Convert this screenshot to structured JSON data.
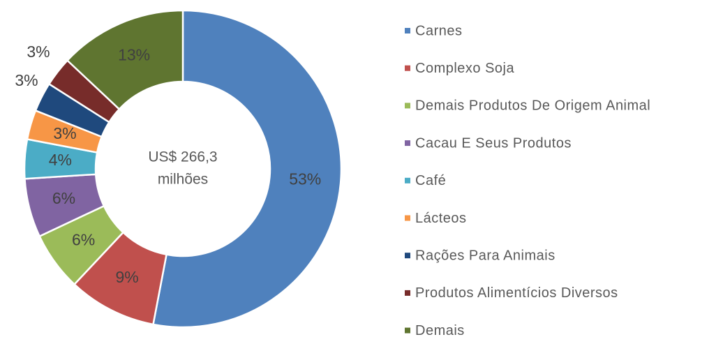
{
  "chart_data": {
    "type": "donut",
    "center_text": [
      "US$ 266,3",
      "milhões"
    ],
    "categories": [
      "Carnes",
      "Complexo Soja",
      "Demais Produtos De Origem Animal",
      "Cacau E Seus Produtos",
      "Café",
      "Lácteos",
      "Rações Para Animais",
      "Produtos Alimentícios Diversos",
      "Demais"
    ],
    "values": [
      53,
      9,
      6,
      6,
      4,
      3,
      3,
      3,
      13
    ],
    "value_labels": [
      "53%",
      "9%",
      "6%",
      "6%",
      "4%",
      "3%",
      "3%",
      "3%",
      "13%"
    ],
    "colors": [
      "#4f81bd",
      "#c0504d",
      "#9bbb59",
      "#8064a2",
      "#4bacc6",
      "#f79646",
      "#1f497d",
      "#772c2a",
      "#5f7530"
    ],
    "legend": "right"
  }
}
